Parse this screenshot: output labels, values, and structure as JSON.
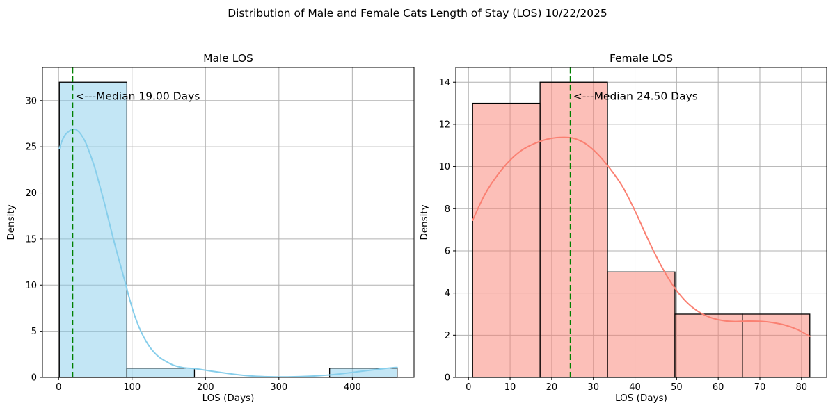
{
  "figure": {
    "title": "Distribution of Male and Female Cats Length of Stay (LOS) 10/22/2025"
  },
  "colors": {
    "background": "#ffffff",
    "grid": "#b0b0b0",
    "median_line": "#008000",
    "bar_edge": "#000000",
    "text": "#000000",
    "male_accent": "#87ceeb",
    "female_accent": "#fa8072"
  },
  "chart_data": [
    {
      "type": "histogram",
      "title": "Male LOS",
      "xlabel": "LOS (Days)",
      "ylabel": "Density",
      "grid": true,
      "bin_edges": [
        1,
        93,
        185,
        277,
        369,
        461
      ],
      "counts": [
        32,
        1,
        0,
        0,
        1
      ],
      "median": 19.0,
      "median_label": "<---Median 19.00 Days",
      "annotation_y": 30.5,
      "xlim": [
        -22,
        484
      ],
      "ylim": [
        0,
        33.6
      ],
      "xticks": [
        0,
        100,
        200,
        300,
        400
      ],
      "yticks": [
        0,
        5,
        10,
        15,
        20,
        25,
        30
      ],
      "bar_color": "#87ceeb",
      "kde_color": "#87ceeb",
      "kde": [
        [
          1,
          24.8
        ],
        [
          5,
          25.7
        ],
        [
          9,
          26.3
        ],
        [
          13,
          26.6
        ],
        [
          17,
          26.85
        ],
        [
          21,
          26.9
        ],
        [
          25,
          26.8
        ],
        [
          30,
          26.4
        ],
        [
          36,
          25.6
        ],
        [
          42,
          24.4
        ],
        [
          49,
          22.8
        ],
        [
          56,
          20.8
        ],
        [
          64,
          18.4
        ],
        [
          73,
          15.5
        ],
        [
          82,
          12.8
        ],
        [
          90,
          10.5
        ],
        [
          97,
          8.4
        ],
        [
          104,
          6.6
        ],
        [
          112,
          5.0
        ],
        [
          120,
          3.8
        ],
        [
          128,
          2.9
        ],
        [
          137,
          2.2
        ],
        [
          147,
          1.7
        ],
        [
          157,
          1.3
        ],
        [
          170,
          1.05
        ],
        [
          185,
          0.95
        ],
        [
          200,
          0.78
        ],
        [
          215,
          0.6
        ],
        [
          230,
          0.43
        ],
        [
          245,
          0.28
        ],
        [
          260,
          0.17
        ],
        [
          278,
          0.09
        ],
        [
          295,
          0.06
        ],
        [
          312,
          0.06
        ],
        [
          330,
          0.09
        ],
        [
          348,
          0.15
        ],
        [
          365,
          0.24
        ],
        [
          382,
          0.37
        ],
        [
          398,
          0.52
        ],
        [
          414,
          0.68
        ],
        [
          430,
          0.83
        ],
        [
          445,
          0.97
        ],
        [
          455,
          1.05
        ],
        [
          461,
          1.08
        ]
      ]
    },
    {
      "type": "histogram",
      "title": "Female LOS",
      "xlabel": "LOS (Days)",
      "ylabel": "Density",
      "grid": true,
      "bin_edges": [
        1,
        17.2,
        33.4,
        49.6,
        65.8,
        82
      ],
      "counts": [
        13,
        14,
        5,
        3,
        3
      ],
      "median": 24.5,
      "median_label": "<---Median 24.50 Days",
      "annotation_y": 13.35,
      "xlim": [
        -3.05,
        86.05
      ],
      "ylim": [
        0,
        14.7
      ],
      "xticks": [
        0,
        10,
        20,
        30,
        40,
        50,
        60,
        70,
        80
      ],
      "yticks": [
        0,
        2,
        4,
        6,
        8,
        10,
        12,
        14
      ],
      "bar_color": "#fa8072",
      "kde_color": "#fa8072",
      "kde": [
        [
          1,
          7.45
        ],
        [
          4,
          8.7
        ],
        [
          7,
          9.6
        ],
        [
          10,
          10.3
        ],
        [
          13,
          10.8
        ],
        [
          16,
          11.1
        ],
        [
          19,
          11.3
        ],
        [
          22,
          11.38
        ],
        [
          25,
          11.35
        ],
        [
          28,
          11.1
        ],
        [
          31,
          10.6
        ],
        [
          34,
          9.9
        ],
        [
          37,
          9.05
        ],
        [
          40,
          7.9
        ],
        [
          43,
          6.6
        ],
        [
          46,
          5.4
        ],
        [
          49,
          4.4
        ],
        [
          52,
          3.65
        ],
        [
          55,
          3.15
        ],
        [
          58,
          2.85
        ],
        [
          61,
          2.7
        ],
        [
          64,
          2.65
        ],
        [
          67,
          2.67
        ],
        [
          70,
          2.66
        ],
        [
          73,
          2.6
        ],
        [
          76,
          2.48
        ],
        [
          79,
          2.27
        ],
        [
          82,
          1.95
        ]
      ]
    }
  ]
}
